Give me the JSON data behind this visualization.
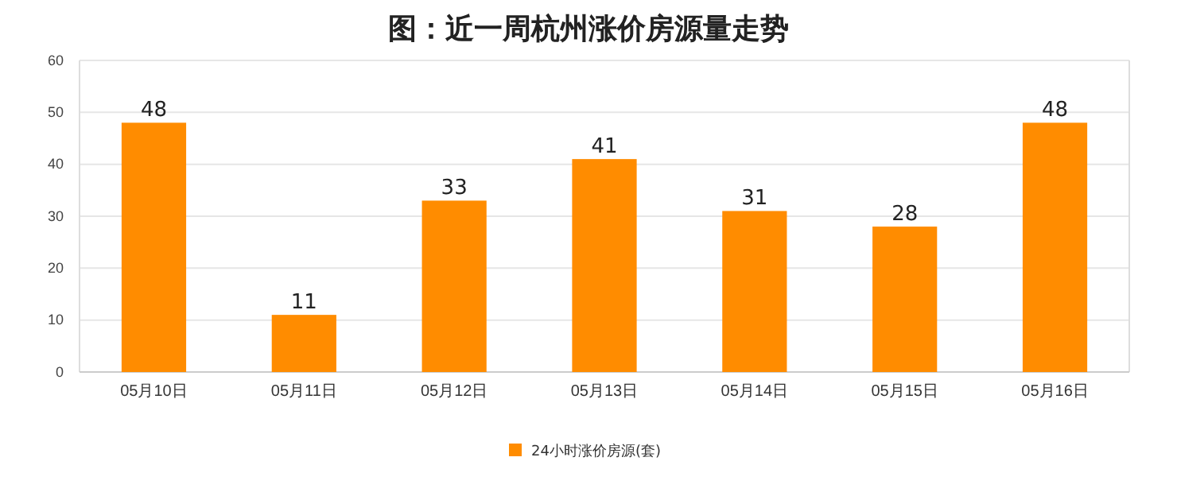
{
  "chart_data": {
    "type": "bar",
    "title": "图：近一周杭州涨价房源量走势",
    "categories": [
      "05月10日",
      "05月11日",
      "05月12日",
      "05月13日",
      "05月14日",
      "05月15日",
      "05月16日"
    ],
    "series": [
      {
        "name": "24小时涨价房源(套)",
        "color": "#ff8c00",
        "values": [
          48,
          11,
          33,
          41,
          31,
          28,
          48
        ]
      }
    ],
    "ylim": [
      0,
      60
    ],
    "yticks": [
      0,
      10,
      20,
      30,
      40,
      50,
      60
    ],
    "grid": "y",
    "legend": "bottom",
    "data_labels": true
  }
}
